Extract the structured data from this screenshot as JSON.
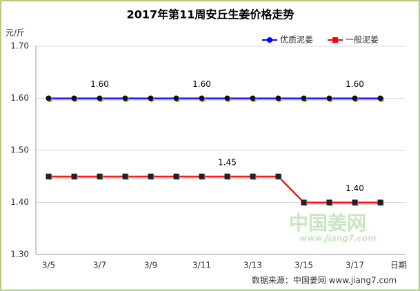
{
  "chart_data": {
    "type": "line",
    "title": "2017年第11周安丘生姜价格走势",
    "y_label": "元/斤",
    "x_label": "日期",
    "source": "数据来源：中国姜网 www.jiang7.com",
    "watermark": {
      "text": "中国姜网",
      "url": "www.jiang7.com"
    },
    "categories": [
      "3/5",
      null,
      "3/7",
      null,
      "3/9",
      null,
      "3/11",
      null,
      "3/13",
      null,
      "3/15",
      null,
      "3/17",
      null
    ],
    "series": [
      {
        "name": "优质泥姜",
        "color": "#0000ff",
        "marker": "circle",
        "values": [
          1.6,
          1.6,
          1.6,
          1.6,
          1.6,
          1.6,
          1.6,
          1.6,
          1.6,
          1.6,
          1.6,
          1.6,
          1.6,
          1.6
        ],
        "value_labels": [
          null,
          null,
          "1.60",
          null,
          null,
          null,
          "1.60",
          null,
          null,
          null,
          null,
          null,
          "1.60",
          null
        ]
      },
      {
        "name": "一般泥姜",
        "color": "#ff0000",
        "marker": "square",
        "values": [
          1.45,
          1.45,
          1.45,
          1.45,
          1.45,
          1.45,
          1.45,
          1.45,
          1.45,
          1.45,
          1.4,
          1.4,
          1.4,
          1.4
        ],
        "value_labels": [
          null,
          null,
          null,
          null,
          null,
          null,
          null,
          "1.45",
          null,
          null,
          null,
          null,
          "1.40",
          null
        ]
      }
    ],
    "ylim": [
      1.3,
      1.7
    ],
    "yticks": [
      {
        "value": 1.3,
        "label": "1.30"
      },
      {
        "value": 1.4,
        "label": "1.40"
      },
      {
        "value": 1.5,
        "label": "1.50"
      },
      {
        "value": 1.6,
        "label": "1.60"
      },
      {
        "value": 1.7,
        "label": "1.70"
      }
    ],
    "grid": true,
    "legend": "top-right"
  }
}
